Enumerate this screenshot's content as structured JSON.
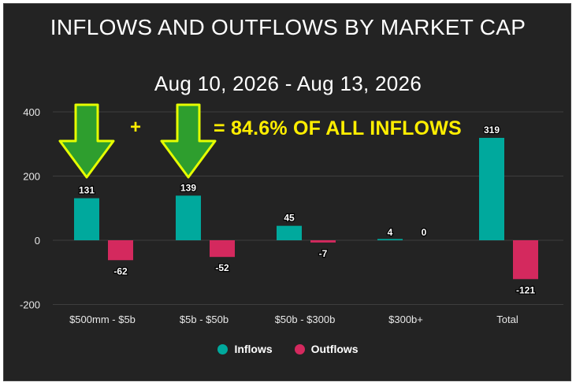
{
  "chart_data": {
    "type": "bar",
    "title": "INFLOWS AND OUTFLOWS BY MARKET CAP",
    "subtitle": "Aug 10, 2026 - Aug 13, 2026",
    "categories": [
      "$500mm - $5b",
      "$5b - $50b",
      "$50b - $300b",
      "$300b+",
      "Total"
    ],
    "series": [
      {
        "name": "Inflows",
        "color": "#00a99d",
        "values": [
          131,
          139,
          45,
          4,
          319
        ]
      },
      {
        "name": "Outflows",
        "color": "#d4295e",
        "values": [
          -62,
          -52,
          -7,
          0,
          -121
        ]
      }
    ],
    "data_labels": {
      "Inflows": [
        "131",
        "139",
        "45",
        "4",
        "319"
      ],
      "Outflows": [
        "-62",
        "-52",
        "-7",
        "0",
        "-121"
      ]
    },
    "yticks": [
      400,
      200,
      0,
      -200
    ],
    "ylim": [
      -200,
      400
    ],
    "grid": true,
    "legend": "bottom-center",
    "annotations": {
      "plus": "+",
      "text": "= 84.6% OF ALL INFLOWS",
      "arrows": [
        "$500mm - $5b",
        "$5b - $50b"
      ],
      "arrow_color": "#2e9e2e",
      "arrow_outline": "#e6ff00",
      "text_color": "#ffee00"
    },
    "background": "#232323"
  }
}
